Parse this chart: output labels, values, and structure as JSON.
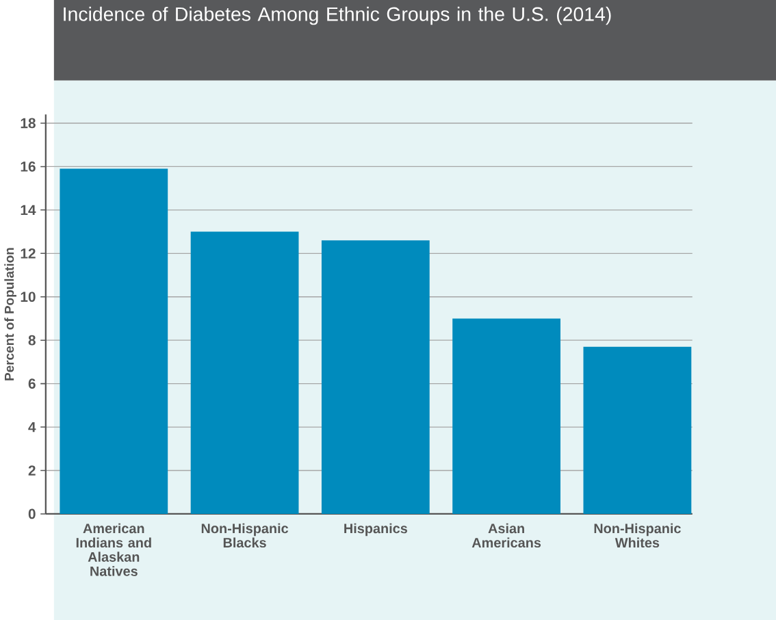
{
  "chart_data": {
    "type": "bar",
    "title": "Incidence of Diabetes Among Ethnic Groups in the U.S. (2014)",
    "ylabel": "Percent of Population",
    "categories": [
      "American Indians and Alaskan Natives",
      "Non-Hispanic Blacks",
      "Hispanics",
      "Asian Americans",
      "Non-Hispanic Whites"
    ],
    "values": [
      15.9,
      13.0,
      12.6,
      9.0,
      7.7
    ],
    "color": "#008bbd",
    "ylim": [
      0,
      18.4
    ],
    "yticks": [
      0,
      2,
      4,
      6,
      8,
      10,
      12,
      14,
      16,
      18
    ],
    "grid": "y"
  }
}
